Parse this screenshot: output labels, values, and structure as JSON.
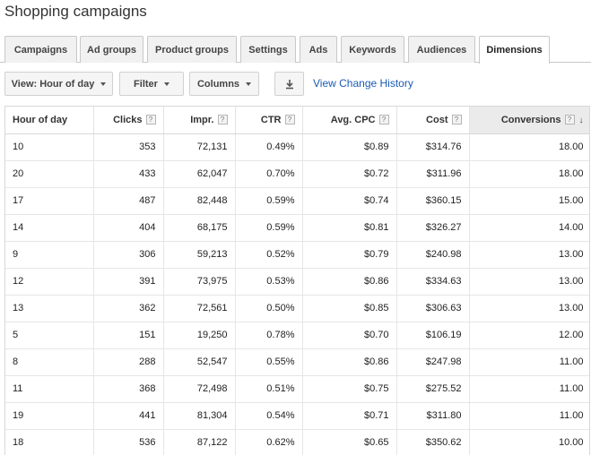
{
  "page": {
    "title": "Shopping campaigns"
  },
  "tabs": [
    {
      "label": "Campaigns",
      "active": false
    },
    {
      "label": "Ad groups",
      "active": false
    },
    {
      "label": "Product groups",
      "active": false
    },
    {
      "label": "Settings",
      "active": false
    },
    {
      "label": "Ads",
      "active": false
    },
    {
      "label": "Keywords",
      "active": false
    },
    {
      "label": "Audiences",
      "active": false
    },
    {
      "label": "Dimensions",
      "active": true
    }
  ],
  "toolbar": {
    "view_label": "View: Hour of day",
    "filter_label": "Filter",
    "columns_label": "Columns",
    "history_link": "View Change History"
  },
  "table": {
    "columns": [
      "Hour of day",
      "Clicks",
      "Impr.",
      "CTR",
      "Avg. CPC",
      "Cost",
      "Conversions"
    ],
    "help_marker": "?",
    "sort_arrow": "↓",
    "rows": [
      [
        "10",
        "353",
        "72,131",
        "0.49%",
        "$0.89",
        "$314.76",
        "18.00"
      ],
      [
        "20",
        "433",
        "62,047",
        "0.70%",
        "$0.72",
        "$311.96",
        "18.00"
      ],
      [
        "17",
        "487",
        "82,448",
        "0.59%",
        "$0.74",
        "$360.15",
        "15.00"
      ],
      [
        "14",
        "404",
        "68,175",
        "0.59%",
        "$0.81",
        "$326.27",
        "14.00"
      ],
      [
        "9",
        "306",
        "59,213",
        "0.52%",
        "$0.79",
        "$240.98",
        "13.00"
      ],
      [
        "12",
        "391",
        "73,975",
        "0.53%",
        "$0.86",
        "$334.63",
        "13.00"
      ],
      [
        "13",
        "362",
        "72,561",
        "0.50%",
        "$0.85",
        "$306.63",
        "13.00"
      ],
      [
        "5",
        "151",
        "19,250",
        "0.78%",
        "$0.70",
        "$106.19",
        "12.00"
      ],
      [
        "8",
        "288",
        "52,547",
        "0.55%",
        "$0.86",
        "$247.98",
        "11.00"
      ],
      [
        "11",
        "368",
        "72,498",
        "0.51%",
        "$0.75",
        "$275.52",
        "11.00"
      ],
      [
        "19",
        "441",
        "81,304",
        "0.54%",
        "$0.71",
        "$311.80",
        "11.00"
      ],
      [
        "18",
        "536",
        "87,122",
        "0.62%",
        "$0.65",
        "$350.62",
        "10.00"
      ]
    ]
  }
}
